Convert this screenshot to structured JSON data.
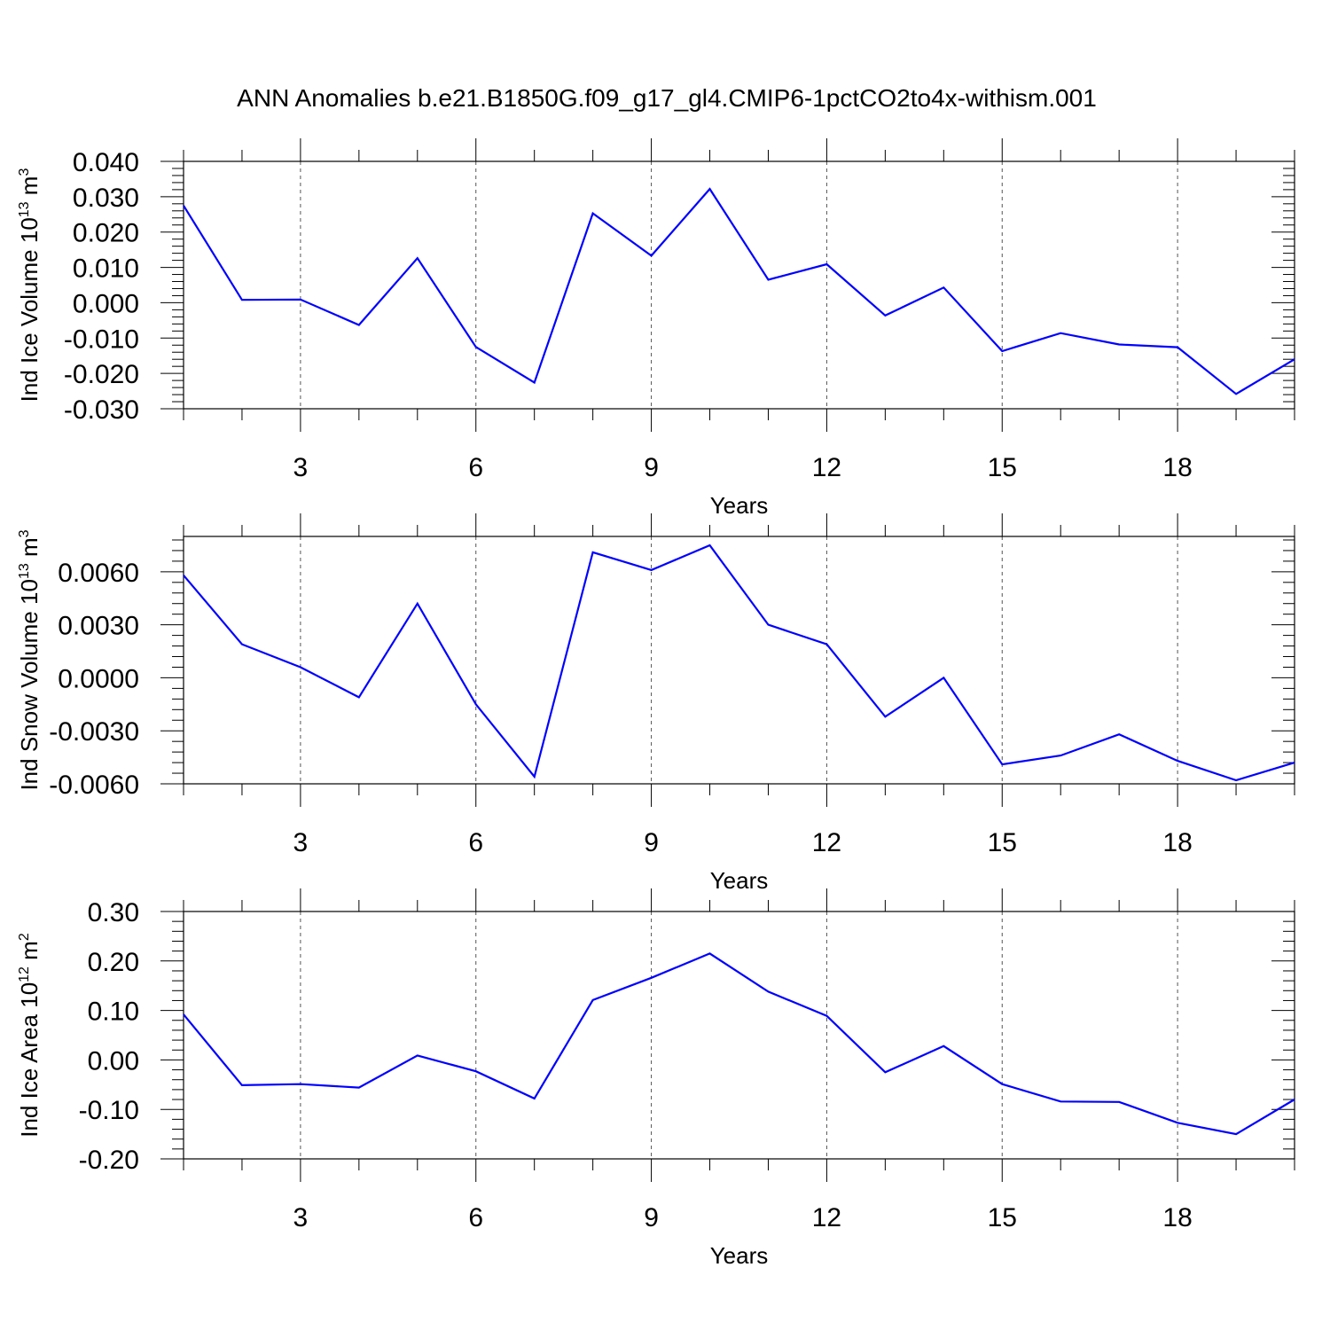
{
  "title": "ANN Anomalies b.e21.B1850G.f09_g17_gl4.CMIP6-1pctCO2to4x-withism.001",
  "colors": {
    "line": "#0000ff",
    "grid": "#555555"
  },
  "chart_data": [
    {
      "type": "line",
      "ylabel": "Ind Ice Volume 10",
      "ylabel_sup": "13",
      "ylabel_unit": "m",
      "ylabel_unit_sup": "3",
      "xlabel": "Years",
      "xlim": [
        1,
        20
      ],
      "ylim": [
        -0.03,
        0.04
      ],
      "yticks": [
        -0.03,
        -0.02,
        -0.01,
        0.0,
        0.01,
        0.02,
        0.03,
        0.04
      ],
      "ytick_labels": [
        "-0.030",
        "-0.020",
        "-0.010",
        "0.000",
        "0.010",
        "0.020",
        "0.030",
        "0.040"
      ],
      "xticks": [
        3,
        6,
        9,
        12,
        15,
        18
      ],
      "xtick_labels": [
        "3",
        "6",
        "9",
        "12",
        "15",
        "18"
      ],
      "grid": "vertical-dashed",
      "x": [
        1,
        2,
        3,
        4,
        5,
        6,
        7,
        8,
        9,
        10,
        11,
        12,
        13,
        14,
        15,
        16,
        17,
        18,
        19,
        20
      ],
      "values": [
        0.0275,
        0.0008,
        0.0009,
        -0.0063,
        0.0126,
        -0.0125,
        -0.0226,
        0.0253,
        0.0133,
        0.0322,
        0.0065,
        0.0109,
        -0.0036,
        0.0043,
        -0.0137,
        -0.0086,
        -0.0118,
        -0.0126,
        -0.0258,
        -0.016
      ]
    },
    {
      "type": "line",
      "ylabel": "Ind Snow Volume 10",
      "ylabel_sup": "13",
      "ylabel_unit": "m",
      "ylabel_unit_sup": "3",
      "xlabel": "Years",
      "xlim": [
        1,
        20
      ],
      "ylim": [
        -0.006,
        0.008
      ],
      "yticks": [
        -0.006,
        -0.003,
        0.0,
        0.003,
        0.006
      ],
      "ytick_labels": [
        "-0.0060",
        "-0.0030",
        "0.0000",
        "0.0030",
        "0.0060"
      ],
      "xticks": [
        3,
        6,
        9,
        12,
        15,
        18
      ],
      "xtick_labels": [
        "3",
        "6",
        "9",
        "12",
        "15",
        "18"
      ],
      "grid": "vertical-dashed",
      "x": [
        1,
        2,
        3,
        4,
        5,
        6,
        7,
        8,
        9,
        10,
        11,
        12,
        13,
        14,
        15,
        16,
        17,
        18,
        19,
        20
      ],
      "values": [
        0.0058,
        0.0019,
        0.0006,
        -0.0011,
        0.0042,
        -0.0015,
        -0.0056,
        0.0071,
        0.0061,
        0.0075,
        0.003,
        0.0019,
        -0.0022,
        0.0,
        -0.0049,
        -0.0044,
        -0.0032,
        -0.0047,
        -0.0058,
        -0.0048
      ]
    },
    {
      "type": "line",
      "ylabel": "Ind Ice Area 10",
      "ylabel_sup": "12",
      "ylabel_unit": "m",
      "ylabel_unit_sup": "2",
      "xlabel": "Years",
      "xlim": [
        1,
        20
      ],
      "ylim": [
        -0.2,
        0.3
      ],
      "yticks": [
        -0.2,
        -0.1,
        0.0,
        0.1,
        0.2,
        0.3
      ],
      "ytick_labels": [
        "-0.20",
        "-0.10",
        "0.00",
        "0.10",
        "0.20",
        "0.30"
      ],
      "xticks": [
        3,
        6,
        9,
        12,
        15,
        18
      ],
      "xtick_labels": [
        "3",
        "6",
        "9",
        "12",
        "15",
        "18"
      ],
      "grid": "vertical-dashed",
      "x": [
        1,
        2,
        3,
        4,
        5,
        6,
        7,
        8,
        9,
        10,
        11,
        12,
        13,
        14,
        15,
        16,
        17,
        18,
        19,
        20
      ],
      "values": [
        0.092,
        -0.051,
        -0.049,
        -0.056,
        0.009,
        -0.023,
        -0.078,
        0.121,
        0.166,
        0.215,
        0.138,
        0.089,
        -0.025,
        0.028,
        -0.049,
        -0.084,
        -0.085,
        -0.127,
        -0.15,
        -0.08
      ]
    }
  ]
}
